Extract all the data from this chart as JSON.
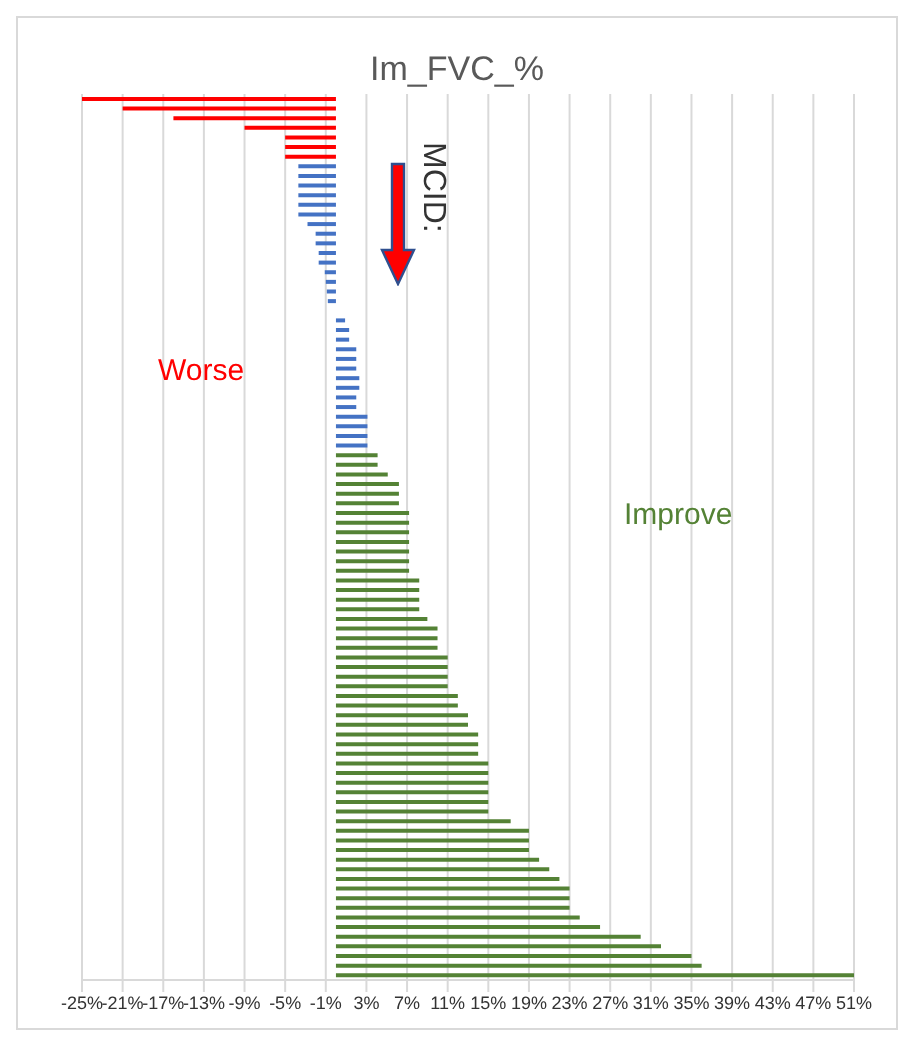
{
  "chart_data": {
    "type": "bar",
    "orientation": "horizontal",
    "title": "Im_FVC_%",
    "annotations": [
      "MCID:",
      "Worse",
      "Improve"
    ],
    "categories": [
      null,
      null,
      null,
      null,
      null,
      null,
      null,
      null,
      null,
      null,
      null,
      null,
      null,
      null,
      null,
      null,
      null,
      null,
      null,
      null,
      null,
      null,
      null,
      null,
      null,
      null,
      null,
      null,
      null,
      null,
      null,
      null,
      null,
      null,
      null,
      null,
      null,
      null,
      null,
      null,
      null,
      null,
      null,
      null,
      null,
      null,
      null,
      null,
      null,
      null,
      null,
      null,
      null,
      null,
      null,
      null,
      null,
      null,
      null,
      null,
      null,
      null,
      null,
      null,
      null,
      null,
      null,
      null,
      null,
      null,
      null,
      null,
      null,
      null,
      null,
      null,
      null,
      null,
      null,
      null,
      null,
      null,
      null,
      null,
      null,
      null,
      null,
      null,
      null,
      null,
      null,
      null
    ],
    "values": [
      -25,
      -21,
      -16,
      -9,
      -5,
      -5,
      -5,
      -3.7,
      -3.7,
      -3.7,
      -3.7,
      -3.7,
      -3.7,
      -2.8,
      -2,
      -2,
      -1.7,
      -1.7,
      -1.1,
      -1,
      -0.9,
      -0.8,
      0,
      0.9,
      1.3,
      1.3,
      2,
      2,
      2,
      2.3,
      2.3,
      2,
      2,
      3.1,
      3.1,
      3.1,
      3.1,
      4.1,
      4.1,
      5.1,
      6.2,
      6.2,
      6.2,
      7.2,
      7.2,
      7.2,
      7.2,
      7.2,
      7.2,
      7.2,
      8.2,
      8.2,
      8.2,
      8.2,
      9,
      10,
      10,
      10,
      11,
      11,
      11,
      11,
      12,
      12,
      13,
      13,
      14,
      14,
      14,
      15,
      15,
      15,
      15,
      15,
      15,
      17.2,
      19,
      19,
      19,
      20,
      21,
      22,
      23,
      23,
      23,
      24,
      26,
      30,
      32,
      35,
      36,
      51
    ],
    "colors": [
      "#ff0000",
      "#ff0000",
      "#ff0000",
      "#ff0000",
      "#ff0000",
      "#ff0000",
      "#ff0000",
      "#4472c4",
      "#4472c4",
      "#4472c4",
      "#4472c4",
      "#4472c4",
      "#4472c4",
      "#4472c4",
      "#4472c4",
      "#4472c4",
      "#4472c4",
      "#4472c4",
      "#4472c4",
      "#4472c4",
      "#4472c4",
      "#4472c4",
      "#4472c4",
      "#4472c4",
      "#4472c4",
      "#4472c4",
      "#4472c4",
      "#4472c4",
      "#4472c4",
      "#4472c4",
      "#4472c4",
      "#4472c4",
      "#4472c4",
      "#4472c4",
      "#4472c4",
      "#4472c4",
      "#4472c4",
      "#548235",
      "#548235",
      "#548235",
      "#548235",
      "#548235",
      "#548235",
      "#548235",
      "#548235",
      "#548235",
      "#548235",
      "#548235",
      "#548235",
      "#548235",
      "#548235",
      "#548235",
      "#548235",
      "#548235",
      "#548235",
      "#548235",
      "#548235",
      "#548235",
      "#548235",
      "#548235",
      "#548235",
      "#548235",
      "#548235",
      "#548235",
      "#548235",
      "#548235",
      "#548235",
      "#548235",
      "#548235",
      "#548235",
      "#548235",
      "#548235",
      "#548235",
      "#548235",
      "#548235",
      "#548235",
      "#548235",
      "#548235",
      "#548235",
      "#548235",
      "#548235",
      "#548235",
      "#548235",
      "#548235",
      "#548235",
      "#548235",
      "#548235",
      "#548235",
      "#548235",
      "#548235",
      "#548235",
      "#548235"
    ],
    "xlim": [
      -25,
      51
    ],
    "xticks": [
      {
        "value": -25,
        "label": "-25%"
      },
      {
        "value": -21,
        "label": "-21%"
      },
      {
        "value": -17,
        "label": "-17%"
      },
      {
        "value": -13,
        "label": "-13%"
      },
      {
        "value": -9,
        "label": "-9%"
      },
      {
        "value": -5,
        "label": "-5%"
      },
      {
        "value": -1,
        "label": "-1%"
      },
      {
        "value": 3,
        "label": "3%"
      },
      {
        "value": 7,
        "label": "7%"
      },
      {
        "value": 11,
        "label": "11%"
      },
      {
        "value": 15,
        "label": "15%"
      },
      {
        "value": 19,
        "label": "19%"
      },
      {
        "value": 23,
        "label": "23%"
      },
      {
        "value": 27,
        "label": "27%"
      },
      {
        "value": 31,
        "label": "31%"
      },
      {
        "value": 35,
        "label": "35%"
      },
      {
        "value": 39,
        "label": "39%"
      },
      {
        "value": 43,
        "label": "43%"
      },
      {
        "value": 47,
        "label": "47%"
      },
      {
        "value": 51,
        "label": "51%"
      }
    ],
    "grid": "x",
    "legend": false
  }
}
